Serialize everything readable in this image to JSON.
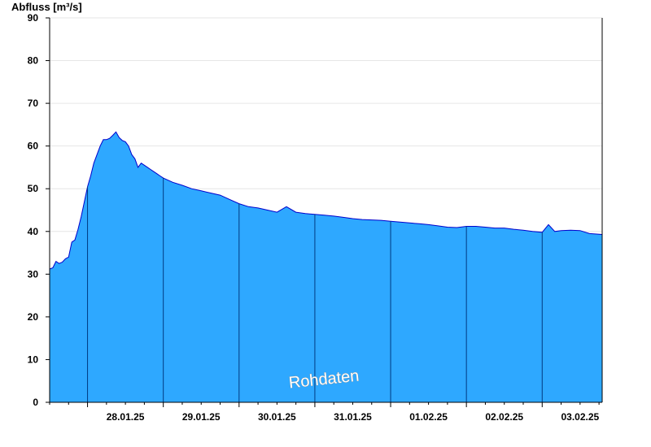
{
  "chart_data": {
    "type": "area",
    "ylabel": "Abfluss [m³/s]",
    "xlabel": "",
    "title": "",
    "ylim": [
      0,
      90
    ],
    "yticks": [
      0,
      10,
      20,
      30,
      40,
      50,
      60,
      70,
      80,
      90
    ],
    "xlim_days": [
      "27.01.25 12:00",
      "03.02.25 19:00"
    ],
    "xtick_labels": [
      "28.01.25",
      "29.01.25",
      "30.01.25",
      "31.01.25",
      "01.02.25",
      "02.02.25",
      "03.02.25"
    ],
    "day_separators": [
      "28.01.25 00:00",
      "29.01.25 00:00",
      "30.01.25 00:00",
      "31.01.25 00:00",
      "01.02.25 00:00",
      "02.02.25 00:00",
      "03.02.25 00:00"
    ],
    "grid": true,
    "watermark": "Rohdaten",
    "colors": {
      "fill": "#2ea8ff",
      "line": "#0000cc",
      "separator": "#003a80",
      "grid": "#e6e6e6"
    },
    "series": [
      {
        "points": [
          [
            "27.01.25 12:00",
            31.2
          ],
          [
            "27.01.25 13:00",
            31.5
          ],
          [
            "27.01.25 14:00",
            33.0
          ],
          [
            "27.01.25 15:00",
            32.5
          ],
          [
            "27.01.25 16:00",
            32.8
          ],
          [
            "27.01.25 17:00",
            33.6
          ],
          [
            "27.01.25 18:00",
            34.0
          ],
          [
            "27.01.25 19:00",
            37.5
          ],
          [
            "27.01.25 20:00",
            38.0
          ],
          [
            "27.01.25 21:00",
            40.5
          ],
          [
            "27.01.25 22:00",
            43.5
          ],
          [
            "27.01.25 23:00",
            47.0
          ],
          [
            "28.01.25 00:00",
            50.5
          ],
          [
            "28.01.25 01:00",
            53.0
          ],
          [
            "28.01.25 02:00",
            56.0
          ],
          [
            "28.01.25 03:00",
            58.0
          ],
          [
            "28.01.25 04:00",
            60.0
          ],
          [
            "28.01.25 05:00",
            61.5
          ],
          [
            "28.01.25 06:00",
            61.5
          ],
          [
            "28.01.25 07:00",
            61.8
          ],
          [
            "28.01.25 08:00",
            62.5
          ],
          [
            "28.01.25 09:00",
            63.3
          ],
          [
            "28.01.25 10:00",
            62.0
          ],
          [
            "28.01.25 11:00",
            61.3
          ],
          [
            "28.01.25 12:00",
            61.0
          ],
          [
            "28.01.25 13:00",
            60.0
          ],
          [
            "28.01.25 14:00",
            58.0
          ],
          [
            "28.01.25 15:00",
            57.0
          ],
          [
            "28.01.25 16:00",
            55.0
          ],
          [
            "28.01.25 17:00",
            56.0
          ],
          [
            "28.01.25 18:00",
            55.5
          ],
          [
            "28.01.25 19:00",
            55.0
          ],
          [
            "28.01.25 20:00",
            54.5
          ],
          [
            "28.01.25 21:00",
            54.0
          ],
          [
            "28.01.25 22:00",
            53.5
          ],
          [
            "28.01.25 23:00",
            53.0
          ],
          [
            "29.01.25 00:00",
            52.5
          ],
          [
            "29.01.25 03:00",
            51.5
          ],
          [
            "29.01.25 06:00",
            50.8
          ],
          [
            "29.01.25 09:00",
            50.0
          ],
          [
            "29.01.25 12:00",
            49.5
          ],
          [
            "29.01.25 15:00",
            49.0
          ],
          [
            "29.01.25 18:00",
            48.5
          ],
          [
            "29.01.25 21:00",
            47.5
          ],
          [
            "30.01.25 00:00",
            46.5
          ],
          [
            "30.01.25 03:00",
            45.8
          ],
          [
            "30.01.25 06:00",
            45.5
          ],
          [
            "30.01.25 09:00",
            45.0
          ],
          [
            "30.01.25 12:00",
            44.5
          ],
          [
            "30.01.25 15:00",
            45.8
          ],
          [
            "30.01.25 18:00",
            44.5
          ],
          [
            "30.01.25 21:00",
            44.2
          ],
          [
            "31.01.25 00:00",
            44.0
          ],
          [
            "31.01.25 03:00",
            43.8
          ],
          [
            "31.01.25 06:00",
            43.6
          ],
          [
            "31.01.25 09:00",
            43.3
          ],
          [
            "31.01.25 12:00",
            43.0
          ],
          [
            "31.01.25 15:00",
            42.8
          ],
          [
            "31.01.25 18:00",
            42.7
          ],
          [
            "31.01.25 21:00",
            42.6
          ],
          [
            "01.02.25 00:00",
            42.4
          ],
          [
            "01.02.25 03:00",
            42.2
          ],
          [
            "01.02.25 06:00",
            42.0
          ],
          [
            "01.02.25 09:00",
            41.8
          ],
          [
            "01.02.25 12:00",
            41.6
          ],
          [
            "01.02.25 15:00",
            41.3
          ],
          [
            "01.02.25 18:00",
            41.0
          ],
          [
            "01.02.25 21:00",
            40.9
          ],
          [
            "02.02.25 00:00",
            41.2
          ],
          [
            "02.02.25 03:00",
            41.2
          ],
          [
            "02.02.25 06:00",
            41.0
          ],
          [
            "02.02.25 09:00",
            40.8
          ],
          [
            "02.02.25 12:00",
            40.8
          ],
          [
            "02.02.25 15:00",
            40.5
          ],
          [
            "02.02.25 18:00",
            40.3
          ],
          [
            "02.02.25 21:00",
            40.0
          ],
          [
            "03.02.25 00:00",
            39.8
          ],
          [
            "03.02.25 02:00",
            41.6
          ],
          [
            "03.02.25 04:00",
            40.0
          ],
          [
            "03.02.25 06:00",
            40.2
          ],
          [
            "03.02.25 09:00",
            40.3
          ],
          [
            "03.02.25 12:00",
            40.2
          ],
          [
            "03.02.25 15:00",
            39.5
          ],
          [
            "03.02.25 19:00",
            39.3
          ]
        ]
      }
    ]
  }
}
